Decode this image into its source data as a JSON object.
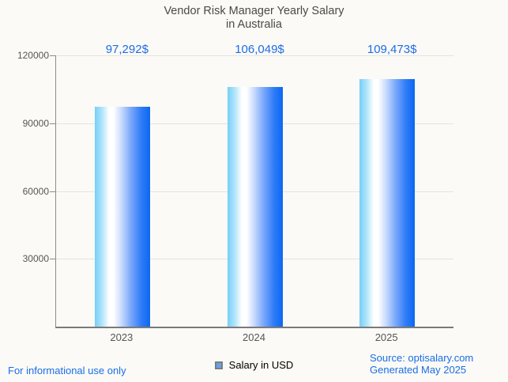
{
  "title": {
    "line1": "Vendor Risk Manager Yearly Salary",
    "line2": "in Australia"
  },
  "chart_data": {
    "type": "bar",
    "title": "Vendor Risk Manager Yearly Salary in Australia",
    "categories": [
      "2023",
      "2024",
      "2025"
    ],
    "values": [
      97292,
      106049,
      109473
    ],
    "value_labels": [
      "97,292$",
      "106,049$",
      "109,473$"
    ],
    "series": [
      {
        "name": "Salary in USD",
        "values": [
          97292,
          106049,
          109473
        ]
      }
    ],
    "xlabel": "",
    "ylabel": "",
    "ylim": [
      0,
      120000
    ],
    "yticks": [
      30000,
      60000,
      90000,
      120000
    ],
    "ytick_labels": [
      "30000",
      "60000",
      "90000",
      "120000"
    ],
    "grid": true,
    "legend_position": "bottom"
  },
  "legend": {
    "label": "Salary in USD",
    "marker_color": "#63a3ec"
  },
  "footer": {
    "disclaimer": "For informational use only",
    "source": "Source: optisalary.com",
    "generated": "Generated May 2025"
  },
  "colors": {
    "background": "#fbfaf6",
    "accent_blue": "#1f6ce8",
    "bar_gradient_left": "#76cff7",
    "bar_gradient_mid": "#ffffff",
    "bar_gradient_right": "#0a68f0",
    "gridline": "#e5e3de",
    "axis": "#8c8c8c",
    "title_text": "#4a4a4a",
    "tick_text": "#565656"
  }
}
